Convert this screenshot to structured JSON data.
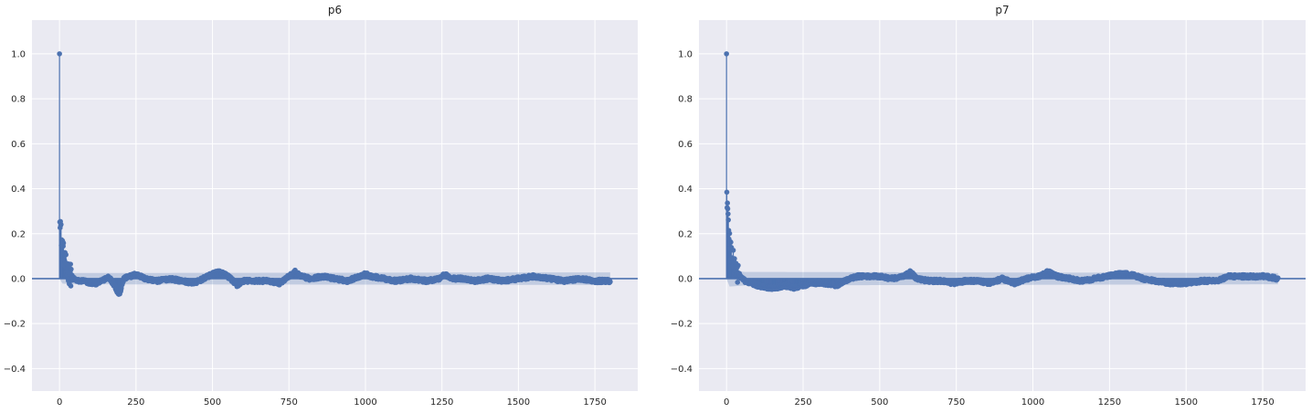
{
  "style": {
    "background": "#eaeaf2",
    "grid_color": "#ffffff",
    "series_color": "#4c72b0",
    "band_color": "#4c72b0"
  },
  "chart_data": [
    {
      "type": "acf_stem",
      "title": "p6",
      "xlabel": "",
      "ylabel": "",
      "xlim": [
        -90,
        1890
      ],
      "ylim": [
        -0.5,
        1.15
      ],
      "xticks": [
        0,
        250,
        500,
        750,
        1000,
        1250,
        1500,
        1750
      ],
      "xtick_labels": [
        "0",
        "250",
        "500",
        "750",
        "1000",
        "1250",
        "1500",
        "1750"
      ],
      "yticks": [
        -0.4,
        -0.2,
        0.0,
        0.2,
        0.4,
        0.6,
        0.8,
        1.0
      ],
      "ytick_labels": [
        "−0.4",
        "−0.2",
        "0.0",
        "0.2",
        "0.4",
        "0.6",
        "0.8",
        "1.0"
      ],
      "grid": true,
      "zero_line": 0,
      "n_lags": 1800,
      "lag0_value": 1.0,
      "confidence_band": {
        "lag_x": [
          0,
          10,
          50,
          1800
        ],
        "upper": [
          0.0,
          0.022,
          0.025,
          0.028
        ]
      },
      "envelope_knots": {
        "x": [
          1,
          3,
          5,
          8,
          12,
          18,
          25,
          35,
          45,
          60,
          80,
          100,
          120,
          140,
          150,
          160,
          170,
          180,
          190,
          195,
          200,
          210,
          230,
          250,
          280,
          320,
          360,
          400,
          440,
          470,
          500,
          520,
          540,
          560,
          580,
          600,
          640,
          680,
          720,
          750,
          770,
          790,
          820,
          860,
          900,
          940,
          980,
          1000,
          1020,
          1060,
          1100,
          1150,
          1200,
          1240,
          1260,
          1280,
          1320,
          1360,
          1400,
          1450,
          1500,
          1550,
          1600,
          1650,
          1700,
          1750,
          1800
        ],
        "y": [
          0.3,
          0.25,
          0.2,
          0.16,
          0.12,
          0.07,
          0.04,
          0.02,
          0.0,
          -0.01,
          -0.01,
          -0.02,
          -0.02,
          -0.01,
          0.0,
          0.01,
          -0.01,
          -0.03,
          -0.06,
          -0.07,
          -0.05,
          0.0,
          0.01,
          0.02,
          0.0,
          -0.01,
          0.0,
          -0.01,
          -0.02,
          0.0,
          0.02,
          0.03,
          0.02,
          0.0,
          -0.03,
          -0.01,
          -0.01,
          -0.01,
          -0.02,
          0.01,
          0.03,
          0.01,
          0.0,
          0.01,
          0.0,
          -0.01,
          0.01,
          0.02,
          0.01,
          0.0,
          -0.01,
          0.0,
          -0.01,
          0.0,
          0.02,
          0.0,
          0.0,
          -0.01,
          0.0,
          -0.01,
          0.0,
          0.01,
          0.0,
          -0.01,
          0.0,
          -0.01,
          -0.01
        ]
      }
    },
    {
      "type": "acf_stem",
      "title": "p7",
      "xlabel": "",
      "ylabel": "",
      "xlim": [
        -90,
        1890
      ],
      "ylim": [
        -0.5,
        1.15
      ],
      "xticks": [
        0,
        250,
        500,
        750,
        1000,
        1250,
        1500,
        1750
      ],
      "xtick_labels": [
        "0",
        "250",
        "500",
        "750",
        "1000",
        "1250",
        "1500",
        "1750"
      ],
      "yticks": [
        -0.4,
        -0.2,
        0.0,
        0.2,
        0.4,
        0.6,
        0.8,
        1.0
      ],
      "ytick_labels": [
        "−0.4",
        "−0.2",
        "0.0",
        "0.2",
        "0.4",
        "0.6",
        "0.8",
        "1.0"
      ],
      "grid": true,
      "zero_line": 0,
      "n_lags": 1800,
      "lag0_value": 1.0,
      "confidence_band": {
        "lag_x": [
          0,
          10,
          60,
          1800
        ],
        "upper": [
          0.0,
          0.035,
          0.03,
          0.025
        ]
      },
      "envelope_knots": {
        "x": [
          1,
          3,
          5,
          8,
          12,
          18,
          25,
          35,
          45,
          60,
          80,
          100,
          130,
          160,
          190,
          220,
          250,
          280,
          320,
          360,
          400,
          430,
          460,
          500,
          540,
          580,
          600,
          620,
          660,
          700,
          740,
          780,
          820,
          860,
          900,
          940,
          980,
          1020,
          1050,
          1080,
          1120,
          1160,
          1200,
          1240,
          1280,
          1320,
          1360,
          1400,
          1450,
          1500,
          1550,
          1600,
          1640,
          1680,
          1720,
          1760,
          1800
        ],
        "y": [
          0.38,
          0.32,
          0.26,
          0.2,
          0.15,
          0.1,
          0.06,
          0.03,
          0.01,
          -0.01,
          -0.02,
          -0.03,
          -0.04,
          -0.04,
          -0.03,
          -0.04,
          -0.03,
          -0.02,
          -0.02,
          -0.03,
          0.0,
          0.01,
          0.01,
          0.01,
          0.0,
          0.01,
          0.03,
          0.0,
          -0.01,
          -0.01,
          -0.02,
          -0.01,
          -0.01,
          -0.02,
          0.0,
          -0.02,
          0.0,
          0.01,
          0.03,
          0.01,
          0.0,
          -0.01,
          0.0,
          0.01,
          0.02,
          0.02,
          0.0,
          -0.01,
          -0.02,
          -0.02,
          -0.01,
          -0.01,
          0.01,
          0.01,
          0.01,
          0.01,
          0.0
        ]
      }
    }
  ]
}
